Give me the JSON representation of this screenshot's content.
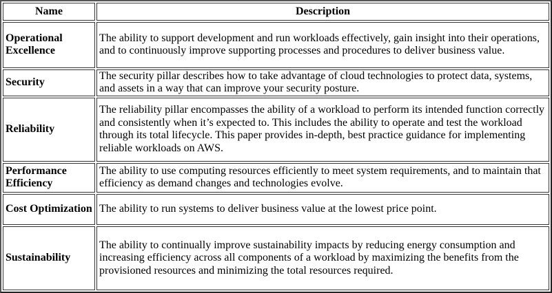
{
  "headers": {
    "name": "Name",
    "description": "Description"
  },
  "rows": [
    {
      "name": "Operational Excellence",
      "description": "The ability to support development and run workloads effectively, gain insight into their operations, and to continuously improve supporting processes and procedures to deliver business value."
    },
    {
      "name": "Security",
      "description": "The security pillar describes how to take advantage of cloud technologies to protect data, systems, and assets in a way that can improve your security posture."
    },
    {
      "name": "Reliability",
      "description": "The reliability pillar encompasses the ability of a workload to perform its intended function correctly and consistently when it’s expected to. This includes the ability to operate and test the workload through its total lifecycle. This paper provides in-depth, best practice guidance for implementing reliable workloads on AWS."
    },
    {
      "name": "Performance Efficiency",
      "description": "The ability to use computing resources efficiently to meet system requirements, and to maintain that efficiency as demand changes and technologies evolve."
    },
    {
      "name": "Cost Optimization",
      "description": "The ability to run systems to deliver business value at the lowest price point."
    },
    {
      "name": "Sustainability",
      "description": "The ability to continually improve sustainability impacts by reducing energy consumption and increasing efficiency across all components of a workload by maximizing the benefits from the provisioned resources and minimizing the total resources required."
    }
  ]
}
